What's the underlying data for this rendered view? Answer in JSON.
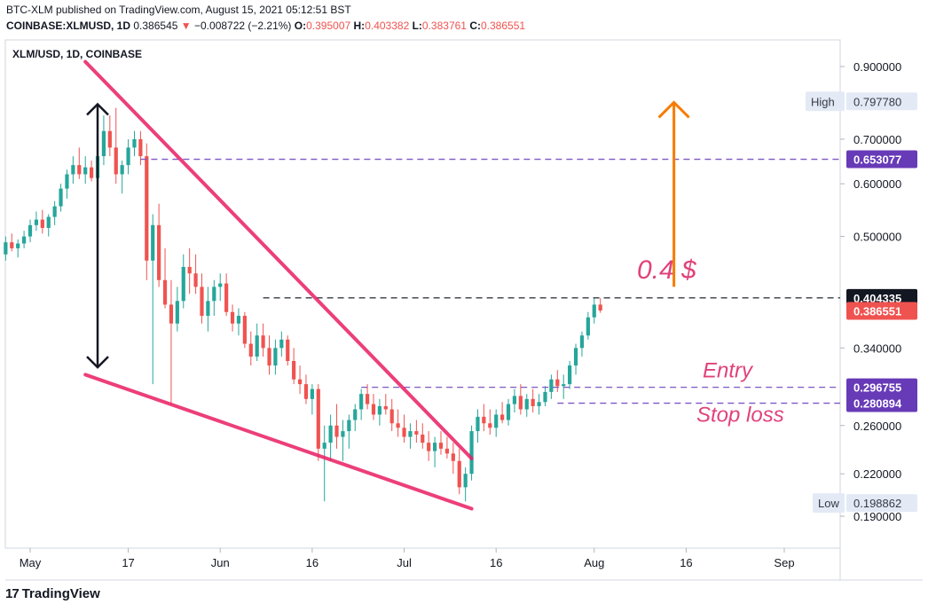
{
  "header": {
    "line1": "BTC-XLM published on TradingView.com, August 15, 2021 05:12:51 BST",
    "symbol": "COINBASE:XLMUSD, 1D",
    "last": "0.386545",
    "change": "−0.008722 (−2.21%)",
    "o_label": "O:",
    "o": "0.395007",
    "h_label": "H:",
    "h": "0.403382",
    "l_label": "L:",
    "l": "0.383761",
    "c_label": "C:",
    "c": "0.386551"
  },
  "chart_data": {
    "type": "candlestick",
    "title": "XLM/USD, 1D, COINBASE",
    "log_scale": true,
    "ylim": [
      0.18,
      0.96
    ],
    "y_ticks": [
      "0.900000",
      "0.700000",
      "0.600000",
      "0.500000",
      "0.340000",
      "0.260000",
      "0.220000",
      "0.190000"
    ],
    "y_tick_values": [
      0.9,
      0.7,
      0.6,
      0.5,
      0.34,
      0.26,
      0.22,
      0.19
    ],
    "x_ticks": [
      "May",
      "17",
      "Jun",
      "16",
      "Jul",
      "16",
      "Aug",
      "16",
      "Sep"
    ],
    "x_tick_days": [
      0,
      16,
      31,
      46,
      61,
      76,
      92,
      107,
      123
    ],
    "x_range_days": [
      -4,
      130
    ],
    "price_labels": [
      {
        "text": "High",
        "value": "0.797780",
        "type": "light"
      },
      {
        "text": "",
        "value": "0.653077",
        "type": "purple"
      },
      {
        "text": "",
        "value": "0.404335",
        "type": "dark"
      },
      {
        "text": "",
        "value": "0.386551",
        "type": "red"
      },
      {
        "text": "",
        "value": "0.296755",
        "type": "purple"
      },
      {
        "text": "",
        "value": "0.280894",
        "type": "purple"
      },
      {
        "text": "Low",
        "value": "0.198862",
        "type": "light"
      }
    ],
    "annotations": [
      {
        "text": "0.4 $",
        "color": "#e0427a"
      },
      {
        "text": "Entry",
        "color": "#e0427a"
      },
      {
        "text": "Stop loss",
        "color": "#e0427a"
      }
    ],
    "candles": [
      [
        -4,
        0.47,
        0.5,
        0.46,
        0.49
      ],
      [
        -3,
        0.49,
        0.505,
        0.475,
        0.48
      ],
      [
        -2,
        0.48,
        0.495,
        0.465,
        0.488
      ],
      [
        -1,
        0.488,
        0.51,
        0.48,
        0.5
      ],
      [
        0,
        0.5,
        0.53,
        0.49,
        0.52
      ],
      [
        1,
        0.52,
        0.545,
        0.51,
        0.53
      ],
      [
        2,
        0.53,
        0.548,
        0.505,
        0.515
      ],
      [
        3,
        0.515,
        0.54,
        0.5,
        0.535
      ],
      [
        4,
        0.535,
        0.565,
        0.52,
        0.555
      ],
      [
        5,
        0.555,
        0.6,
        0.545,
        0.59
      ],
      [
        6,
        0.59,
        0.63,
        0.57,
        0.62
      ],
      [
        7,
        0.62,
        0.66,
        0.6,
        0.64
      ],
      [
        8,
        0.64,
        0.68,
        0.61,
        0.62
      ],
      [
        9,
        0.62,
        0.66,
        0.6,
        0.635
      ],
      [
        10,
        0.635,
        0.65,
        0.605,
        0.612
      ],
      [
        11,
        0.612,
        0.68,
        0.6,
        0.66
      ],
      [
        12,
        0.66,
        0.76,
        0.64,
        0.72
      ],
      [
        13,
        0.72,
        0.76,
        0.66,
        0.68
      ],
      [
        14,
        0.68,
        0.78,
        0.6,
        0.62
      ],
      [
        15,
        0.62,
        0.65,
        0.58,
        0.64
      ],
      [
        16,
        0.64,
        0.7,
        0.62,
        0.68
      ],
      [
        17,
        0.68,
        0.72,
        0.66,
        0.7
      ],
      [
        18,
        0.7,
        0.72,
        0.64,
        0.66
      ],
      [
        19,
        0.66,
        0.69,
        0.43,
        0.46
      ],
      [
        20,
        0.46,
        0.54,
        0.3,
        0.52
      ],
      [
        21,
        0.52,
        0.56,
        0.42,
        0.43
      ],
      [
        22,
        0.43,
        0.48,
        0.39,
        0.395
      ],
      [
        23,
        0.395,
        0.43,
        0.28,
        0.37
      ],
      [
        24,
        0.37,
        0.42,
        0.36,
        0.4
      ],
      [
        25,
        0.4,
        0.47,
        0.39,
        0.45
      ],
      [
        26,
        0.45,
        0.48,
        0.41,
        0.44
      ],
      [
        27,
        0.44,
        0.47,
        0.41,
        0.42
      ],
      [
        28,
        0.42,
        0.44,
        0.37,
        0.38
      ],
      [
        29,
        0.38,
        0.42,
        0.36,
        0.4
      ],
      [
        30,
        0.4,
        0.43,
        0.38,
        0.42
      ],
      [
        31,
        0.42,
        0.44,
        0.4,
        0.425
      ],
      [
        32,
        0.425,
        0.44,
        0.38,
        0.385
      ],
      [
        33,
        0.385,
        0.395,
        0.36,
        0.37
      ],
      [
        34,
        0.37,
        0.39,
        0.355,
        0.38
      ],
      [
        35,
        0.38,
        0.385,
        0.34,
        0.345
      ],
      [
        36,
        0.345,
        0.36,
        0.32,
        0.33
      ],
      [
        37,
        0.33,
        0.37,
        0.325,
        0.355
      ],
      [
        38,
        0.355,
        0.37,
        0.33,
        0.34
      ],
      [
        39,
        0.34,
        0.355,
        0.31,
        0.32
      ],
      [
        40,
        0.32,
        0.35,
        0.31,
        0.34
      ],
      [
        41,
        0.34,
        0.36,
        0.33,
        0.35
      ],
      [
        42,
        0.35,
        0.355,
        0.32,
        0.325
      ],
      [
        43,
        0.325,
        0.34,
        0.3,
        0.305
      ],
      [
        44,
        0.305,
        0.32,
        0.29,
        0.3
      ],
      [
        45,
        0.3,
        0.31,
        0.28,
        0.285
      ],
      [
        46,
        0.285,
        0.3,
        0.27,
        0.295
      ],
      [
        47,
        0.295,
        0.3,
        0.23,
        0.24
      ],
      [
        48,
        0.24,
        0.26,
        0.2,
        0.245
      ],
      [
        49,
        0.245,
        0.27,
        0.23,
        0.26
      ],
      [
        50,
        0.26,
        0.28,
        0.24,
        0.25
      ],
      [
        51,
        0.25,
        0.265,
        0.23,
        0.255
      ],
      [
        52,
        0.255,
        0.27,
        0.24,
        0.265
      ],
      [
        53,
        0.265,
        0.28,
        0.255,
        0.275
      ],
      [
        54,
        0.275,
        0.295,
        0.265,
        0.29
      ],
      [
        55,
        0.29,
        0.3,
        0.275,
        0.28
      ],
      [
        56,
        0.28,
        0.29,
        0.265,
        0.27
      ],
      [
        57,
        0.27,
        0.285,
        0.26,
        0.278
      ],
      [
        58,
        0.278,
        0.29,
        0.27,
        0.275
      ],
      [
        59,
        0.275,
        0.285,
        0.255,
        0.262
      ],
      [
        60,
        0.262,
        0.275,
        0.25,
        0.258
      ],
      [
        61,
        0.258,
        0.27,
        0.245,
        0.25
      ],
      [
        62,
        0.25,
        0.262,
        0.24,
        0.255
      ],
      [
        63,
        0.255,
        0.265,
        0.245,
        0.252
      ],
      [
        64,
        0.252,
        0.262,
        0.24,
        0.245
      ],
      [
        65,
        0.245,
        0.255,
        0.23,
        0.238
      ],
      [
        66,
        0.238,
        0.25,
        0.225,
        0.245
      ],
      [
        67,
        0.245,
        0.255,
        0.235,
        0.24
      ],
      [
        68,
        0.24,
        0.25,
        0.232,
        0.236
      ],
      [
        69,
        0.236,
        0.245,
        0.22,
        0.23
      ],
      [
        70,
        0.23,
        0.24,
        0.205,
        0.21
      ],
      [
        71,
        0.21,
        0.225,
        0.2,
        0.22
      ],
      [
        72,
        0.22,
        0.26,
        0.215,
        0.255
      ],
      [
        73,
        0.255,
        0.275,
        0.245,
        0.268
      ],
      [
        74,
        0.268,
        0.28,
        0.255,
        0.262
      ],
      [
        75,
        0.262,
        0.275,
        0.252,
        0.258
      ],
      [
        76,
        0.258,
        0.275,
        0.25,
        0.27
      ],
      [
        77,
        0.27,
        0.282,
        0.262,
        0.265
      ],
      [
        78,
        0.265,
        0.285,
        0.26,
        0.28
      ],
      [
        79,
        0.28,
        0.295,
        0.272,
        0.288
      ],
      [
        80,
        0.288,
        0.3,
        0.27,
        0.275
      ],
      [
        81,
        0.275,
        0.29,
        0.268,
        0.285
      ],
      [
        82,
        0.285,
        0.295,
        0.272,
        0.278
      ],
      [
        83,
        0.278,
        0.29,
        0.27,
        0.282
      ],
      [
        84,
        0.282,
        0.298,
        0.278,
        0.292
      ],
      [
        85,
        0.292,
        0.31,
        0.285,
        0.305
      ],
      [
        86,
        0.305,
        0.315,
        0.292,
        0.298
      ],
      [
        87,
        0.298,
        0.31,
        0.285,
        0.3
      ],
      [
        88,
        0.3,
        0.325,
        0.295,
        0.32
      ],
      [
        89,
        0.32,
        0.345,
        0.31,
        0.34
      ],
      [
        90,
        0.34,
        0.36,
        0.33,
        0.355
      ],
      [
        91,
        0.355,
        0.385,
        0.35,
        0.378
      ],
      [
        92,
        0.378,
        0.404,
        0.37,
        0.395
      ],
      [
        93,
        0.395,
        0.404,
        0.384,
        0.387
      ]
    ]
  }
}
